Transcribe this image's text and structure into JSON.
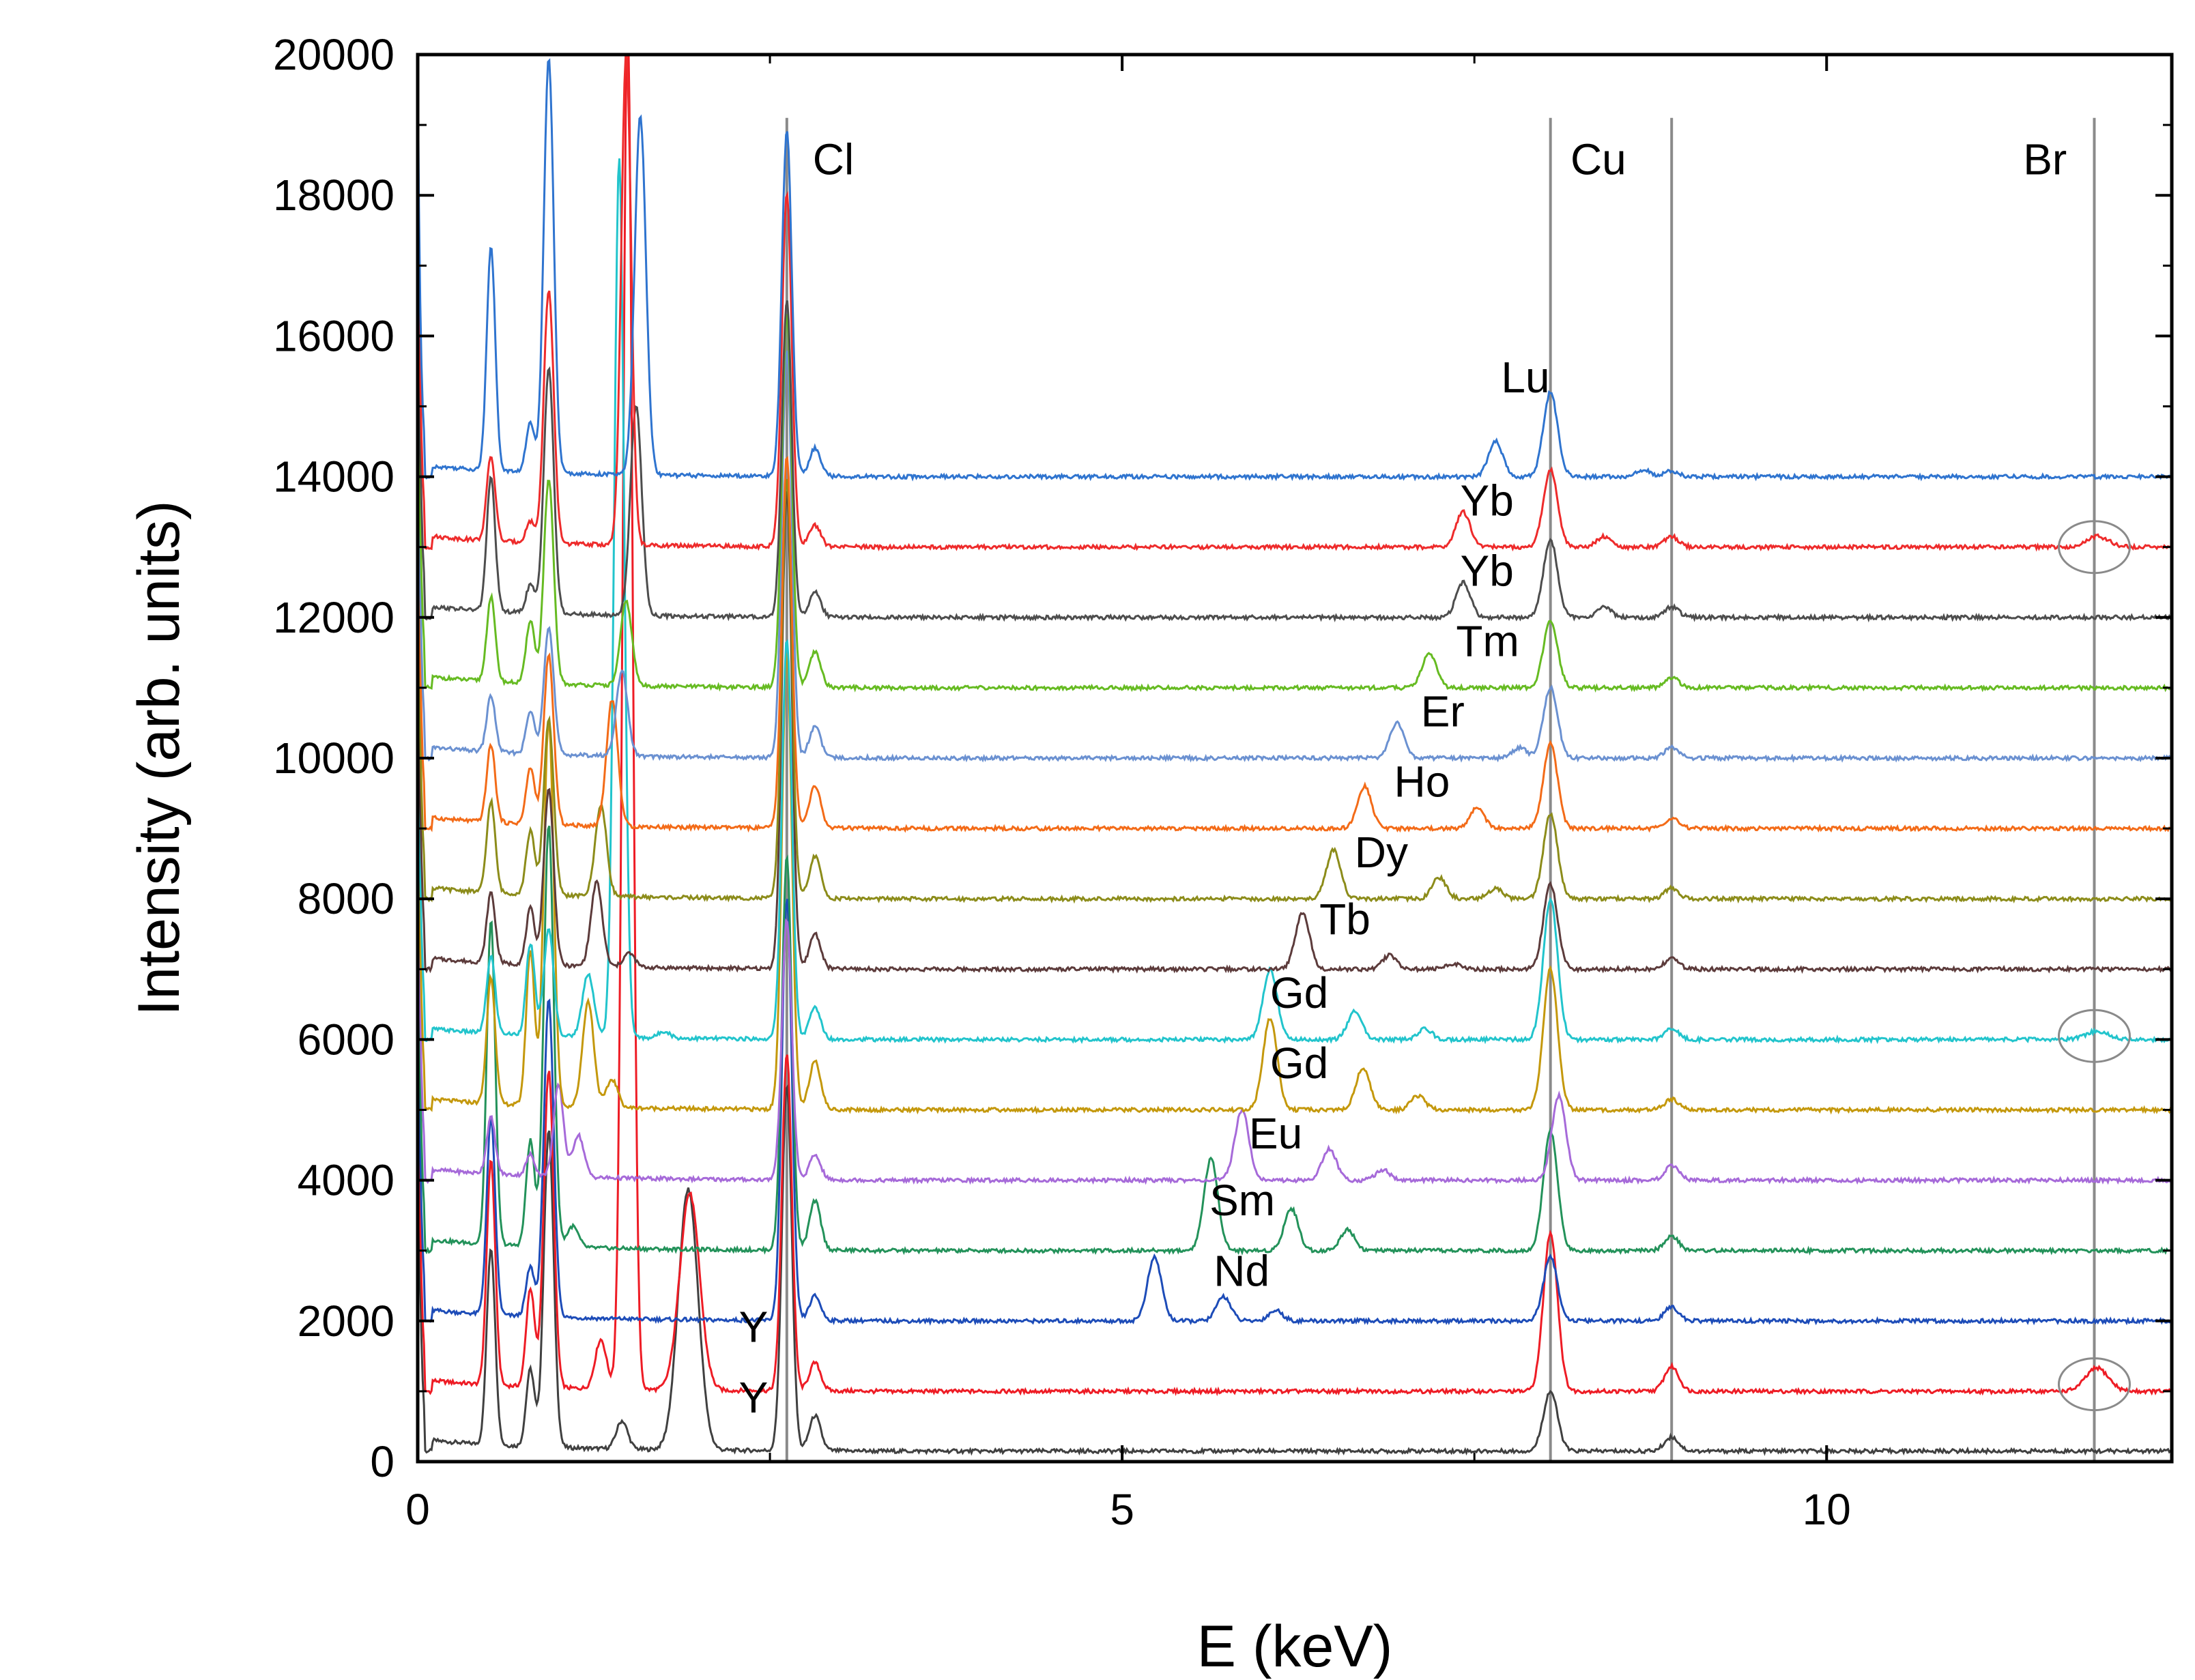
{
  "chart_data": {
    "type": "line",
    "title": "",
    "xlabel": "E (keV)",
    "ylabel": "Intensity (arb. units)",
    "xlim": [
      0,
      12.45
    ],
    "ylim": [
      0,
      20000
    ],
    "x_ticks": [
      0,
      5,
      10
    ],
    "y_ticks": [
      0,
      2000,
      4000,
      6000,
      8000,
      10000,
      12000,
      14000,
      16000,
      18000,
      20000
    ],
    "vertical_reference_lines": [
      {
        "name": "Cl",
        "energy": 2.62
      },
      {
        "name": "Cu",
        "energy": 8.04
      },
      {
        "name": "Cu",
        "energy": 8.9
      },
      {
        "name": "Br",
        "energy": 11.9
      }
    ],
    "reference_labels": [
      {
        "text": "Cl",
        "energy": 2.95,
        "intensity": 18300
      },
      {
        "text": "Cu",
        "energy": 8.38,
        "intensity": 18300
      },
      {
        "text": "Br",
        "energy": 11.55,
        "intensity": 18300
      }
    ],
    "highlight_circles": [
      {
        "energy": 11.9,
        "intensity": 13000
      },
      {
        "energy": 11.9,
        "intensity": 6050
      },
      {
        "energy": 11.9,
        "intensity": 1100
      }
    ],
    "series": [
      {
        "name": "Y",
        "color": "#404040",
        "baseline": 150,
        "peaks": [
          [
            0.52,
            2800,
            0.03
          ],
          [
            0.8,
            1100,
            0.03
          ],
          [
            0.93,
            4500,
            0.035
          ],
          [
            1.45,
            400,
            0.04
          ],
          [
            1.92,
            3700,
            0.07
          ],
          [
            2.62,
            5200,
            0.035
          ],
          [
            2.82,
            500,
            0.04
          ],
          [
            8.04,
            850,
            0.05
          ],
          [
            8.9,
            200,
            0.05
          ]
        ],
        "label": {
          "text": "Y",
          "energy": 2.28,
          "intensity": 700
        }
      },
      {
        "name": "Y",
        "color": "#ee1c25",
        "baseline": 1000,
        "peaks": [
          [
            0.52,
            3200,
            0.03
          ],
          [
            0.8,
            1400,
            0.03
          ],
          [
            0.93,
            4500,
            0.035
          ],
          [
            1.3,
            700,
            0.04
          ],
          [
            1.49,
            19500,
            0.035
          ],
          [
            1.93,
            2800,
            0.07
          ],
          [
            2.62,
            4800,
            0.035
          ],
          [
            2.82,
            400,
            0.04
          ],
          [
            8.04,
            2250,
            0.05
          ],
          [
            8.9,
            350,
            0.05
          ],
          [
            11.92,
            330,
            0.08
          ]
        ],
        "label": {
          "text": "Y",
          "energy": 2.28,
          "intensity": 1700
        }
      },
      {
        "name": "Nd",
        "color": "#1d4cb8",
        "baseline": 2000,
        "peaks": [
          [
            0.52,
            2800,
            0.03
          ],
          [
            0.8,
            700,
            0.03
          ],
          [
            0.93,
            4500,
            0.035
          ],
          [
            2.62,
            6000,
            0.035
          ],
          [
            2.82,
            350,
            0.04
          ],
          [
            5.23,
            900,
            0.05
          ],
          [
            5.72,
            350,
            0.05
          ],
          [
            6.09,
            150,
            0.05
          ],
          [
            8.04,
            900,
            0.05
          ],
          [
            8.9,
            200,
            0.05
          ]
        ],
        "label": {
          "text": "Nd",
          "energy": 5.65,
          "intensity": 2500
        }
      },
      {
        "name": "Sm",
        "color": "#23925a",
        "baseline": 3000,
        "peaks": [
          [
            0.52,
            4600,
            0.03
          ],
          [
            0.8,
            1500,
            0.03
          ],
          [
            0.93,
            6000,
            0.035
          ],
          [
            1.1,
            300,
            0.04
          ],
          [
            2.62,
            5600,
            0.035
          ],
          [
            2.82,
            700,
            0.04
          ],
          [
            5.63,
            1300,
            0.05
          ],
          [
            6.2,
            600,
            0.05
          ],
          [
            6.6,
            300,
            0.05
          ],
          [
            8.04,
            1700,
            0.05
          ],
          [
            8.9,
            200,
            0.05
          ]
        ],
        "label": {
          "text": "Sm",
          "energy": 5.62,
          "intensity": 3500
        }
      },
      {
        "name": "Eu",
        "color": "#a66ad9",
        "baseline": 4000,
        "peaks": [
          [
            0.52,
            800,
            0.03
          ],
          [
            0.8,
            300,
            0.03
          ],
          [
            1.0,
            1300,
            0.035
          ],
          [
            1.14,
            600,
            0.04
          ],
          [
            2.62,
            3700,
            0.035
          ],
          [
            2.82,
            350,
            0.04
          ],
          [
            5.85,
            1000,
            0.05
          ],
          [
            6.47,
            450,
            0.05
          ],
          [
            6.85,
            150,
            0.05
          ],
          [
            8.1,
            1200,
            0.05
          ],
          [
            8.9,
            200,
            0.05
          ]
        ],
        "label": {
          "text": "Eu",
          "energy": 5.9,
          "intensity": 4450
        }
      },
      {
        "name": "Gd",
        "color": "#c4980c",
        "baseline": 5000,
        "peaks": [
          [
            0.52,
            1800,
            0.03
          ],
          [
            0.8,
            2200,
            0.03
          ],
          [
            0.93,
            5500,
            0.035
          ],
          [
            1.21,
            1500,
            0.04
          ],
          [
            1.38,
            400,
            0.04
          ],
          [
            2.62,
            6500,
            0.035
          ],
          [
            2.82,
            700,
            0.04
          ],
          [
            6.05,
            1300,
            0.05
          ],
          [
            6.71,
            600,
            0.05
          ],
          [
            7.1,
            200,
            0.05
          ],
          [
            8.04,
            2000,
            0.05
          ],
          [
            8.9,
            150,
            0.05
          ]
        ],
        "label": {
          "text": "Gd",
          "energy": 6.05,
          "intensity": 5450
        }
      },
      {
        "name": "Gd",
        "color": "#22c4cc",
        "baseline": 6000,
        "peaks": [
          [
            0.52,
            1100,
            0.03
          ],
          [
            0.8,
            1300,
            0.03
          ],
          [
            0.93,
            1500,
            0.035
          ],
          [
            1.21,
            900,
            0.04
          ],
          [
            1.43,
            12500,
            0.035
          ],
          [
            1.75,
            100,
            0.04
          ],
          [
            2.62,
            5700,
            0.035
          ],
          [
            2.82,
            450,
            0.04
          ],
          [
            6.05,
            1000,
            0.05
          ],
          [
            6.65,
            400,
            0.05
          ],
          [
            7.15,
            150,
            0.05
          ],
          [
            8.04,
            2000,
            0.05
          ],
          [
            8.9,
            150,
            0.05
          ],
          [
            11.92,
            120,
            0.08
          ]
        ],
        "label": {
          "text": "Gd",
          "energy": 6.05,
          "intensity": 6450
        }
      },
      {
        "name": "Tb",
        "color": "#5c3b3b",
        "baseline": 7000,
        "peaks": [
          [
            0.52,
            1000,
            0.03
          ],
          [
            0.8,
            800,
            0.03
          ],
          [
            0.93,
            2500,
            0.035
          ],
          [
            1.27,
            1200,
            0.04
          ],
          [
            1.5,
            200,
            0.04
          ],
          [
            2.62,
            6800,
            0.035
          ],
          [
            2.82,
            500,
            0.04
          ],
          [
            6.28,
            800,
            0.05
          ],
          [
            6.9,
            200,
            0.05
          ],
          [
            7.35,
            80,
            0.05
          ],
          [
            8.04,
            1200,
            0.05
          ],
          [
            8.9,
            150,
            0.05
          ]
        ],
        "label": {
          "text": "Tb",
          "energy": 6.4,
          "intensity": 7500
        }
      },
      {
        "name": "Dy",
        "color": "#8c8c1a",
        "baseline": 8000,
        "peaks": [
          [
            0.52,
            1300,
            0.03
          ],
          [
            0.8,
            900,
            0.03
          ],
          [
            0.93,
            2500,
            0.035
          ],
          [
            1.3,
            1300,
            0.04
          ],
          [
            2.62,
            6000,
            0.035
          ],
          [
            2.82,
            600,
            0.04
          ],
          [
            6.5,
            700,
            0.05
          ],
          [
            7.25,
            300,
            0.05
          ],
          [
            7.65,
            150,
            0.05
          ],
          [
            8.04,
            1200,
            0.05
          ],
          [
            8.9,
            150,
            0.05
          ]
        ],
        "label": {
          "text": "Dy",
          "energy": 6.65,
          "intensity": 8450
        }
      },
      {
        "name": "Ho",
        "color": "#f36b18",
        "baseline": 9000,
        "peaks": [
          [
            0.52,
            1100,
            0.03
          ],
          [
            0.8,
            800,
            0.03
          ],
          [
            0.93,
            2400,
            0.035
          ],
          [
            1.38,
            1800,
            0.04
          ],
          [
            2.62,
            5300,
            0.035
          ],
          [
            2.82,
            600,
            0.04
          ],
          [
            6.72,
            600,
            0.05
          ],
          [
            7.52,
            300,
            0.05
          ],
          [
            8.04,
            1200,
            0.05
          ],
          [
            8.9,
            150,
            0.05
          ]
        ],
        "label": {
          "text": "Ho",
          "energy": 6.93,
          "intensity": 9450
        }
      },
      {
        "name": "Er",
        "color": "#6b91d1",
        "baseline": 10000,
        "peaks": [
          [
            0.52,
            800,
            0.03
          ],
          [
            0.8,
            600,
            0.03
          ],
          [
            0.93,
            1800,
            0.035
          ],
          [
            1.45,
            1200,
            0.04
          ],
          [
            2.62,
            5800,
            0.035
          ],
          [
            2.82,
            450,
            0.04
          ],
          [
            6.95,
            500,
            0.05
          ],
          [
            7.82,
            150,
            0.05
          ],
          [
            8.04,
            1000,
            0.05
          ],
          [
            8.9,
            150,
            0.05
          ]
        ],
        "label": {
          "text": "Er",
          "energy": 7.12,
          "intensity": 10450
        }
      },
      {
        "name": "Tm",
        "color": "#66bb22",
        "baseline": 11000,
        "peaks": [
          [
            0.52,
            1200,
            0.03
          ],
          [
            0.8,
            900,
            0.03
          ],
          [
            0.93,
            2900,
            0.035
          ],
          [
            1.48,
            1200,
            0.04
          ],
          [
            2.62,
            5300,
            0.035
          ],
          [
            2.82,
            500,
            0.04
          ],
          [
            7.18,
            500,
            0.05
          ],
          [
            8.04,
            950,
            0.05
          ],
          [
            8.9,
            150,
            0.05
          ]
        ],
        "label": {
          "text": "Tm",
          "energy": 7.37,
          "intensity": 11450
        }
      },
      {
        "name": "Yb",
        "color": "#4d4d4d",
        "baseline": 12000,
        "peaks": [
          [
            0.52,
            1900,
            0.03
          ],
          [
            0.8,
            400,
            0.03
          ],
          [
            0.93,
            3500,
            0.035
          ],
          [
            1.55,
            3000,
            0.04
          ],
          [
            2.62,
            4500,
            0.035
          ],
          [
            2.82,
            350,
            0.04
          ],
          [
            7.42,
            500,
            0.05
          ],
          [
            8.04,
            1100,
            0.05
          ],
          [
            8.42,
            150,
            0.05
          ],
          [
            8.9,
            150,
            0.05
          ]
        ],
        "label": {
          "text": "Yb",
          "energy": 7.4,
          "intensity": 12450
        }
      },
      {
        "name": "Yb",
        "color": "#ee2b2b",
        "baseline": 13000,
        "peaks": [
          [
            0.52,
            1200,
            0.03
          ],
          [
            0.8,
            300,
            0.03
          ],
          [
            0.93,
            3600,
            0.035
          ],
          [
            1.48,
            7000,
            0.035
          ],
          [
            2.62,
            5000,
            0.035
          ],
          [
            2.82,
            300,
            0.04
          ],
          [
            7.42,
            500,
            0.05
          ],
          [
            8.04,
            1100,
            0.05
          ],
          [
            8.42,
            150,
            0.05
          ],
          [
            8.9,
            150,
            0.05
          ],
          [
            11.92,
            150,
            0.08
          ]
        ],
        "label": {
          "text": "Yb",
          "energy": 7.4,
          "intensity": 13450
        }
      },
      {
        "name": "Lu",
        "color": "#2f74cf",
        "baseline": 14000,
        "peaks": [
          [
            0.52,
            3200,
            0.03
          ],
          [
            0.8,
            700,
            0.03
          ],
          [
            0.93,
            5900,
            0.035
          ],
          [
            1.58,
            5100,
            0.04
          ],
          [
            2.62,
            4900,
            0.035
          ],
          [
            2.82,
            400,
            0.04
          ],
          [
            7.65,
            500,
            0.05
          ],
          [
            8.04,
            1200,
            0.05
          ],
          [
            8.7,
            100,
            0.05
          ],
          [
            8.9,
            80,
            0.05
          ]
        ],
        "label": {
          "text": "Lu",
          "energy": 7.69,
          "intensity": 15200
        }
      }
    ]
  }
}
